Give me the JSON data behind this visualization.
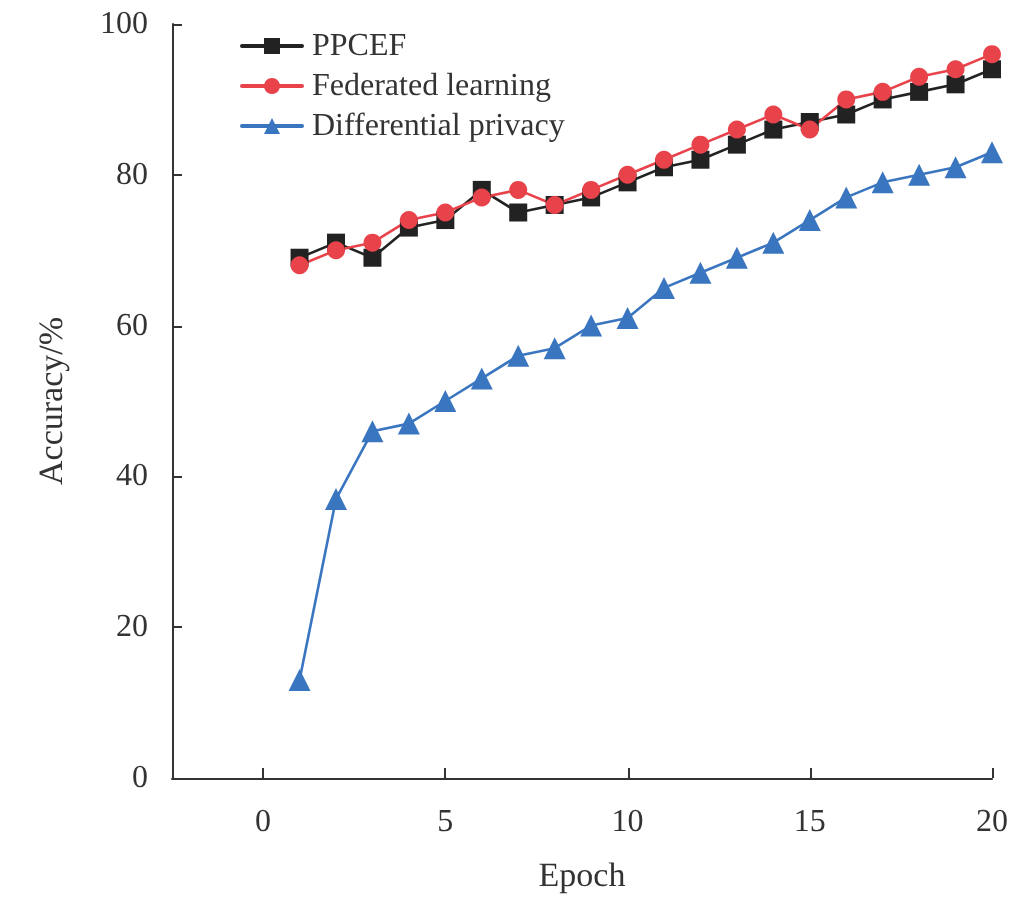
{
  "chart_data": {
    "type": "line",
    "xlabel": "Epoch",
    "ylabel": "Accuracy/%",
    "x": [
      1,
      2,
      3,
      4,
      5,
      6,
      7,
      8,
      9,
      10,
      11,
      12,
      13,
      14,
      15,
      16,
      17,
      18,
      19,
      20
    ],
    "series": [
      {
        "name": "PPCEF",
        "color": "#222222",
        "marker": "square",
        "values": [
          69,
          71,
          69,
          73,
          74,
          78,
          75,
          76,
          77,
          79,
          81,
          82,
          84,
          86,
          87,
          88,
          90,
          91,
          92,
          94
        ]
      },
      {
        "name": "Federated learning",
        "color": "#e8434b",
        "marker": "circle",
        "values": [
          68,
          70,
          71,
          74,
          75,
          77,
          78,
          76,
          78,
          80,
          82,
          84,
          86,
          88,
          86,
          90,
          91,
          93,
          94,
          96
        ]
      },
      {
        "name": "Differential privacy",
        "color": "#3a75c0",
        "marker": "triangle",
        "values": [
          13,
          37,
          46,
          47,
          50,
          53,
          56,
          57,
          60,
          61,
          65,
          67,
          69,
          71,
          74,
          77,
          79,
          80,
          81,
          83
        ]
      }
    ],
    "xlim": [
      -2.5,
      20
    ],
    "xticks": [
      0,
      5,
      10,
      15,
      20
    ],
    "ylim": [
      0,
      100
    ],
    "yticks": [
      0,
      20,
      40,
      60,
      80,
      100
    ],
    "grid": false,
    "legend": "top left",
    "line_style": "solid"
  }
}
